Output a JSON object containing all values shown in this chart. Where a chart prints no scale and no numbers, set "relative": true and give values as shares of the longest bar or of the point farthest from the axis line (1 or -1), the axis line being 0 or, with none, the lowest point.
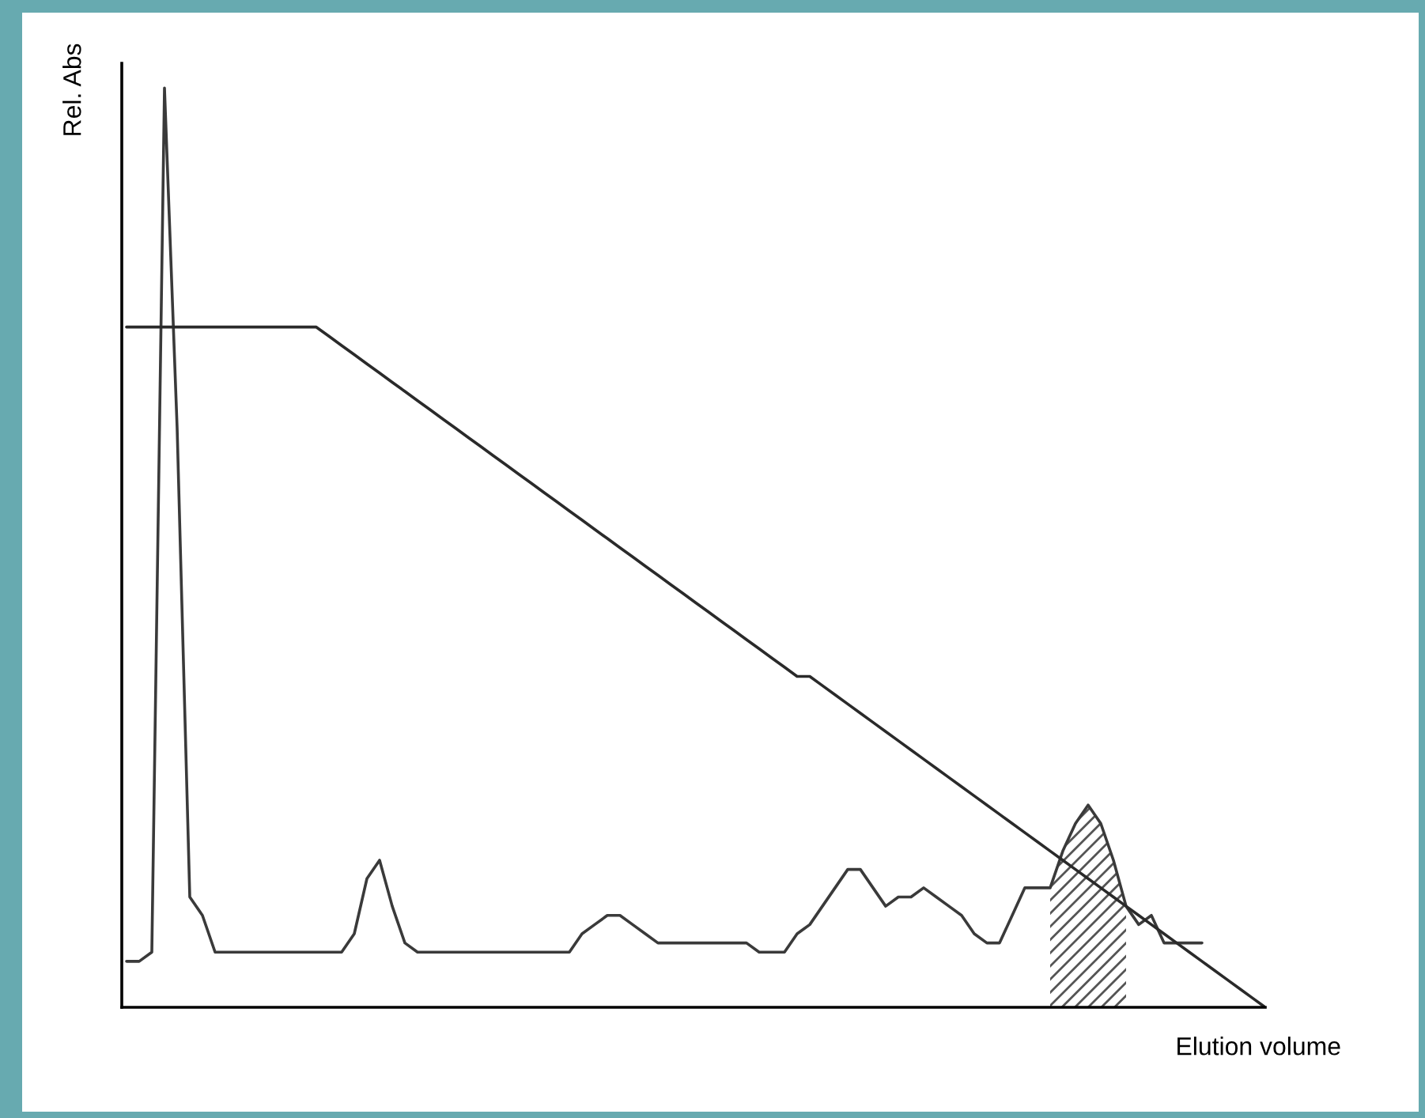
{
  "chart_data": {
    "type": "line",
    "relative": true,
    "xlabel": "Elution volume",
    "ylabel": "Rel. Abs",
    "categories": [
      null,
      null,
      null,
      null,
      null,
      null,
      null,
      null,
      null,
      null,
      null,
      null,
      null,
      null,
      null,
      null,
      null,
      null,
      null,
      null,
      null,
      null,
      null,
      null,
      null,
      null,
      null,
      null,
      null,
      null,
      null,
      null,
      null,
      null,
      null,
      null,
      null,
      null,
      null,
      null,
      null,
      null,
      null,
      null,
      null,
      null,
      null,
      null,
      null,
      null,
      null,
      null,
      null,
      null,
      null,
      null,
      null,
      null,
      null,
      null,
      null,
      null,
      null,
      null,
      null,
      null,
      null,
      null,
      null,
      null,
      null,
      null,
      null,
      null,
      null,
      null,
      null,
      null,
      null,
      null,
      null,
      null,
      null,
      null,
      null,
      null,
      null,
      null,
      null,
      null,
      null
    ],
    "series": [
      {
        "color": "#3a3a3a",
        "values": [
          0.05,
          0.05,
          0.06,
          1.0,
          0.63,
          0.12,
          0.1,
          0.06,
          0.06,
          0.06,
          0.06,
          0.06,
          0.06,
          0.06,
          0.06,
          0.06,
          0.06,
          0.06,
          0.08,
          0.14,
          0.16,
          0.11,
          0.07,
          0.06,
          0.06,
          0.06,
          0.06,
          0.06,
          0.06,
          0.06,
          0.06,
          0.06,
          0.06,
          0.06,
          0.06,
          0.06,
          0.08,
          0.09,
          0.1,
          0.1,
          0.09,
          0.08,
          0.07,
          0.07,
          0.07,
          0.07,
          0.07,
          0.07,
          0.07,
          0.07,
          0.06,
          0.06,
          0.06,
          0.08,
          0.09,
          0.11,
          0.13,
          0.15,
          0.15,
          0.13,
          0.11,
          0.12,
          0.12,
          0.13,
          0.12,
          0.11,
          0.1,
          0.08,
          0.07,
          0.07,
          0.1,
          0.13,
          0.13,
          0.13,
          0.17,
          0.2,
          0.22,
          0.2,
          0.16,
          0.11,
          0.09,
          0.1,
          0.07,
          0.07,
          0.07,
          0.07,
          null,
          null,
          null,
          null,
          null
        ]
      },
      {
        "color": "#2a2a2a",
        "values": [
          0.74,
          0.74,
          0.74,
          0.74,
          0.74,
          0.74,
          0.74,
          0.74,
          0.74,
          0.74,
          0.74,
          0.74,
          0.74,
          0.74,
          0.74,
          0.74,
          0.73,
          0.72,
          0.71,
          0.7,
          0.69,
          0.68,
          0.67,
          0.66,
          0.65,
          0.64,
          0.63,
          0.62,
          0.61,
          0.6,
          0.59,
          0.58,
          0.57,
          0.56,
          0.55,
          0.54,
          0.53,
          0.52,
          0.51,
          0.5,
          0.49,
          0.48,
          0.47,
          0.46,
          0.45,
          0.44,
          0.43,
          0.42,
          0.41,
          0.4,
          0.39,
          0.38,
          0.37,
          0.36,
          0.36,
          0.35,
          0.34,
          0.33,
          0.32,
          0.31,
          0.3,
          0.29,
          0.28,
          0.27,
          0.26,
          0.25,
          0.24,
          0.23,
          0.22,
          0.21,
          0.2,
          0.19,
          0.18,
          0.17,
          0.16,
          0.15,
          0.14,
          0.13,
          0.12,
          0.11,
          0.1,
          0.09,
          0.08,
          0.07,
          0.06,
          0.05,
          0.04,
          0.03,
          0.02,
          0.01,
          0.0
        ]
      },
      {
        "type": "area",
        "color": "#555555",
        "values": [
          null,
          null,
          null,
          null,
          null,
          null,
          null,
          null,
          null,
          null,
          null,
          null,
          null,
          null,
          null,
          null,
          null,
          null,
          null,
          null,
          null,
          null,
          null,
          null,
          null,
          null,
          null,
          null,
          null,
          null,
          null,
          null,
          null,
          null,
          null,
          null,
          null,
          null,
          null,
          null,
          null,
          null,
          null,
          null,
          null,
          null,
          null,
          null,
          null,
          null,
          null,
          null,
          null,
          null,
          null,
          null,
          null,
          null,
          null,
          null,
          null,
          null,
          null,
          null,
          null,
          null,
          null,
          null,
          null,
          null,
          null,
          null,
          null,
          0.13,
          0.17,
          0.2,
          0.22,
          0.2,
          0.16,
          0.11,
          null,
          null,
          null,
          null,
          null,
          null,
          null,
          null,
          null,
          null,
          null
        ]
      }
    ]
  }
}
